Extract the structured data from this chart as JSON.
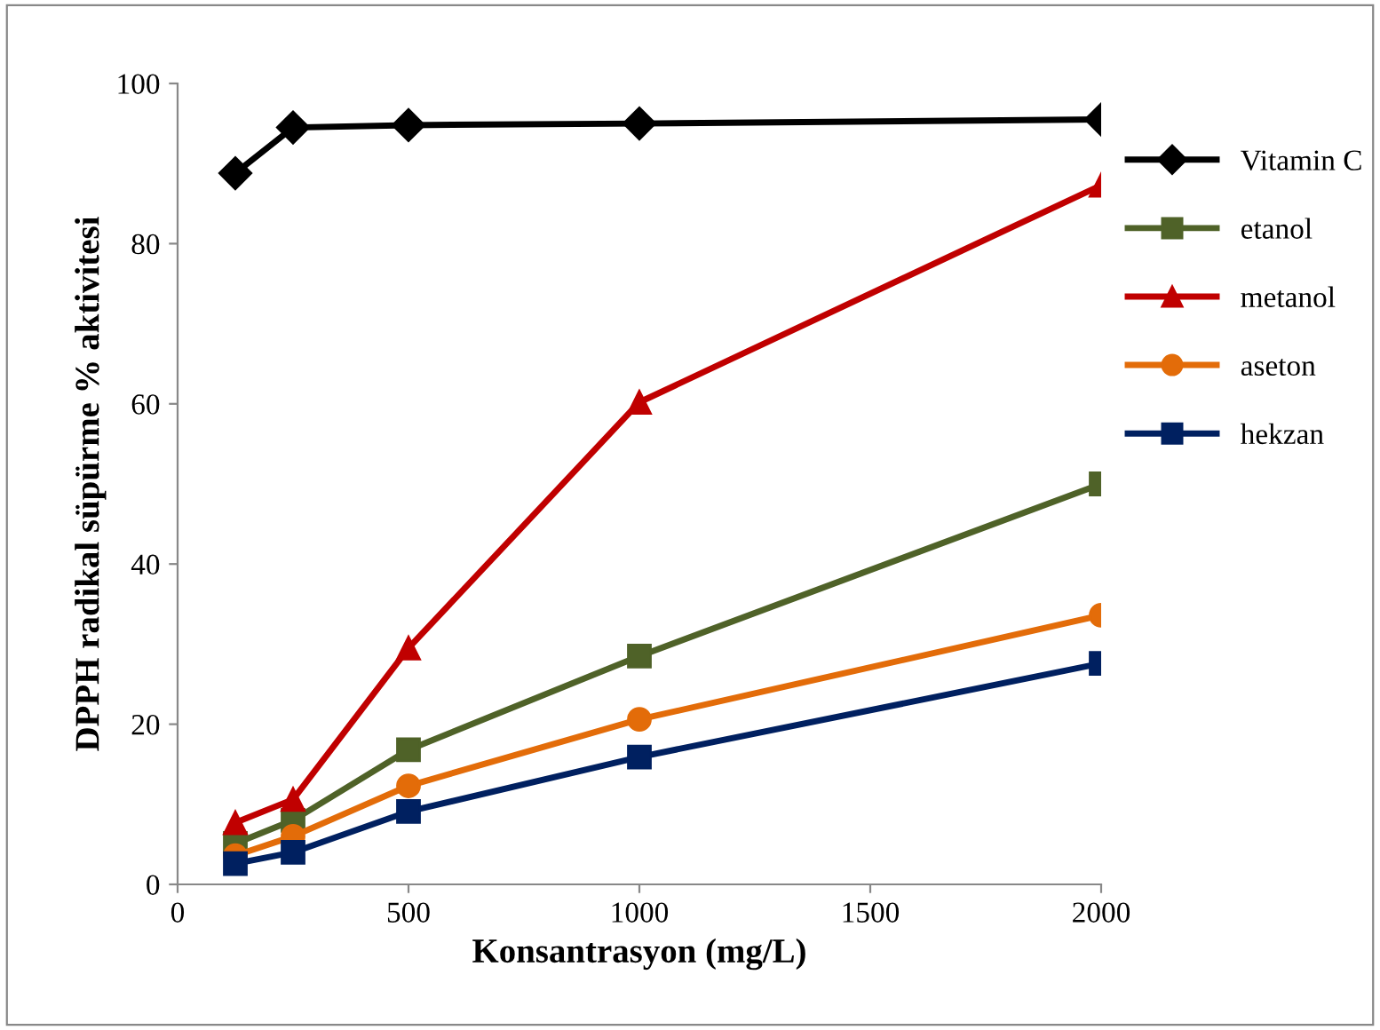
{
  "chart_data": {
    "type": "line",
    "xlabel": "Konsantrasyon (mg/L)",
    "ylabel": "DPPH radikal süpürme % aktivitesi",
    "x": [
      125,
      250,
      500,
      1000,
      2000
    ],
    "series": [
      {
        "name": "Vitamin C",
        "color": "#000000",
        "marker": "diamond",
        "values": [
          88.8,
          94.5,
          94.8,
          95.0,
          95.5
        ]
      },
      {
        "name": "etanol",
        "color": "#4f6228",
        "marker": "square",
        "values": [
          5.1,
          8.0,
          16.8,
          28.5,
          50.0
        ]
      },
      {
        "name": "metanol",
        "color": "#c00000",
        "marker": "triangle",
        "values": [
          7.7,
          10.6,
          29.5,
          60.2,
          87.3
        ]
      },
      {
        "name": "aseton",
        "color": "#e36c09",
        "marker": "circle",
        "values": [
          3.6,
          6.0,
          12.3,
          20.6,
          33.6
        ]
      },
      {
        "name": "hekzan",
        "color": "#002060",
        "marker": "square",
        "values": [
          2.6,
          4.0,
          9.1,
          15.9,
          27.6
        ]
      }
    ],
    "xlim": [
      0,
      2000
    ],
    "xticks": [
      0,
      500,
      1000,
      1500,
      2000
    ],
    "ylim": [
      0,
      100
    ],
    "yticks": [
      0,
      20,
      40,
      60,
      80,
      100
    ],
    "grid": false,
    "legend": "right",
    "line_style": "solid"
  }
}
